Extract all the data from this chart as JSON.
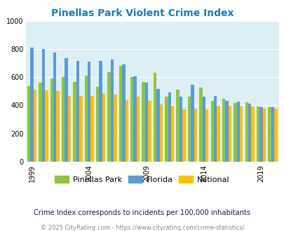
{
  "title": "Pinellas Park Violent Crime Index",
  "title_color": "#1a7abf",
  "ylim": [
    0,
    1000
  ],
  "yticks": [
    0,
    200,
    400,
    600,
    800,
    1000
  ],
  "plot_bg": "#ddeef5",
  "footer1": "Crime Index corresponds to incidents per 100,000 inhabitants",
  "footer2": "© 2025 CityRating.com - https://www.cityrating.com/crime-statistics/",
  "years": [
    1999,
    2000,
    2001,
    2002,
    2003,
    2004,
    2005,
    2006,
    2007,
    2008,
    2009,
    2010,
    2011,
    2012,
    2013,
    2014,
    2015,
    2016,
    2017,
    2018,
    2019,
    2020
  ],
  "pinellas": [
    535,
    560,
    590,
    600,
    565,
    610,
    530,
    635,
    680,
    600,
    565,
    630,
    460,
    510,
    460,
    525,
    430,
    445,
    415,
    420,
    390,
    385
  ],
  "florida": [
    810,
    800,
    775,
    735,
    715,
    710,
    715,
    725,
    690,
    605,
    560,
    515,
    490,
    460,
    545,
    460,
    465,
    430,
    425,
    410,
    385,
    385
  ],
  "national": [
    510,
    505,
    500,
    465,
    465,
    465,
    480,
    475,
    435,
    460,
    430,
    405,
    395,
    375,
    380,
    375,
    395,
    395,
    395,
    390,
    380,
    380
  ],
  "color_pinellas": "#8dc641",
  "color_florida": "#5b9bd5",
  "color_national": "#ffc000",
  "legend_labels": [
    "Pinellas Park",
    "Florida",
    "National"
  ],
  "xtick_years": [
    1999,
    2004,
    2009,
    2014,
    2019
  ],
  "grid_color": "#ffffff",
  "bar_width": 0.27
}
